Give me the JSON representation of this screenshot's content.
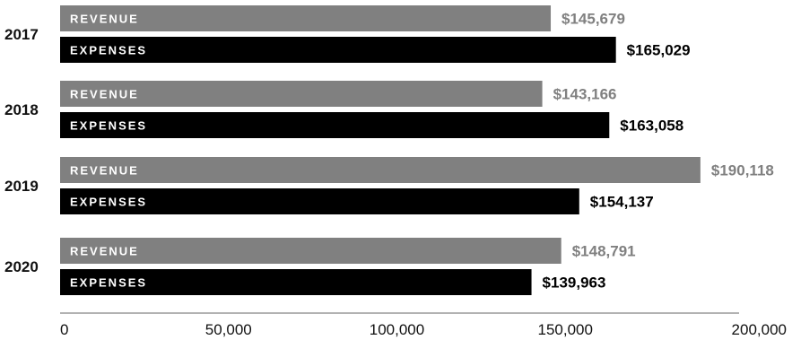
{
  "colors": {
    "revenue": "#808080",
    "expenses": "#000000",
    "axis": "#999999",
    "text": "#111111"
  },
  "chart_data": {
    "type": "bar",
    "orientation": "horizontal",
    "categories": [
      "2017",
      "2018",
      "2019",
      "2020"
    ],
    "series": [
      {
        "name": "REVENUE",
        "values": [
          145679,
          143166,
          190118,
          148791
        ],
        "labels": [
          "$145,679",
          "$143,166",
          "$190,118",
          "$148,791"
        ]
      },
      {
        "name": "EXPENSES",
        "values": [
          165029,
          163058,
          154137,
          139963
        ],
        "labels": [
          "$165,029",
          "$163,058",
          "$154,137",
          "$139,963"
        ]
      }
    ],
    "xlim": [
      0,
      200000
    ],
    "xticks": [
      0,
      50000,
      100000,
      150000,
      200000
    ],
    "xtick_labels": [
      "0",
      "50,000",
      "100,000",
      "150,000",
      "200,000"
    ],
    "grid": false
  }
}
